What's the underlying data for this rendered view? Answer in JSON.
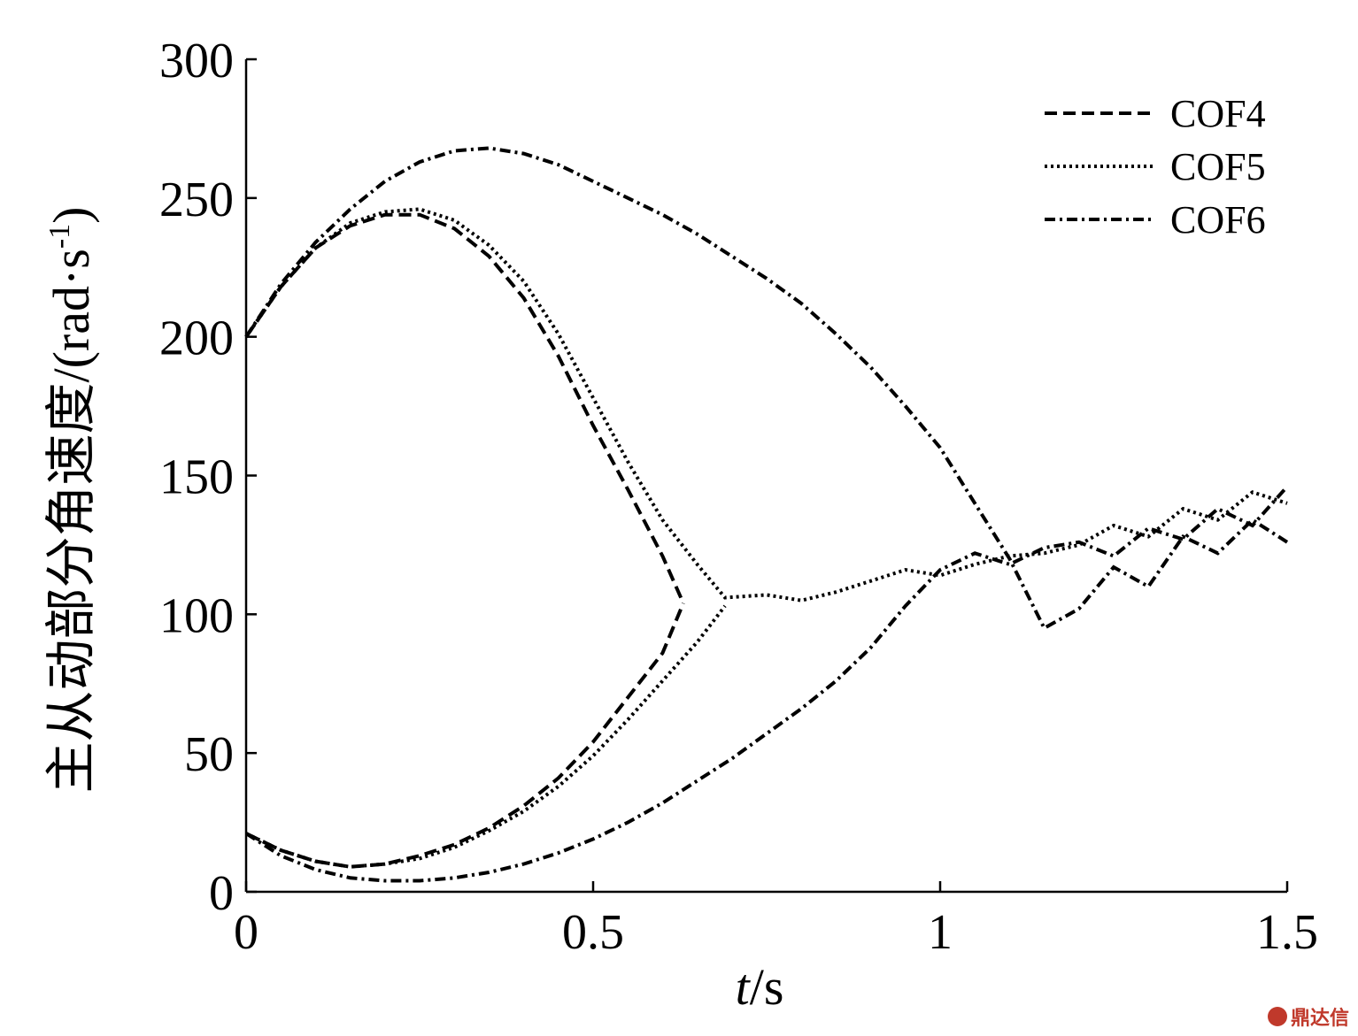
{
  "chart_data": {
    "type": "line",
    "title": "",
    "xlabel_italic": "t",
    "xlabel_rest": "/s",
    "ylabel_main": "主从动部分角速度/(rad·s",
    "ylabel_sup": "-1",
    "ylabel_close": ")",
    "xlim": [
      0,
      1.5
    ],
    "ylim": [
      0,
      300
    ],
    "xticks": [
      "0",
      "0.5",
      "1",
      "1.5"
    ],
    "xtick_values": [
      0,
      0.5,
      1,
      1.5
    ],
    "yticks": [
      "0",
      "50",
      "100",
      "150",
      "200",
      "250",
      "300"
    ],
    "ytick_values": [
      0,
      50,
      100,
      150,
      200,
      250,
      300
    ],
    "grid": false,
    "legend_position": "top-right",
    "series": [
      {
        "name": "COF4",
        "style": "dashed",
        "driving": [
          [
            0,
            200
          ],
          [
            0.05,
            218
          ],
          [
            0.1,
            232
          ],
          [
            0.15,
            240
          ],
          [
            0.2,
            244
          ],
          [
            0.25,
            244
          ],
          [
            0.3,
            239
          ],
          [
            0.35,
            229
          ],
          [
            0.4,
            214
          ],
          [
            0.45,
            193
          ],
          [
            0.5,
            168
          ],
          [
            0.55,
            145
          ],
          [
            0.6,
            121
          ],
          [
            0.63,
            104
          ]
        ],
        "driven": [
          [
            0,
            21
          ],
          [
            0.05,
            15
          ],
          [
            0.1,
            11
          ],
          [
            0.15,
            9
          ],
          [
            0.2,
            10
          ],
          [
            0.25,
            13
          ],
          [
            0.3,
            17
          ],
          [
            0.35,
            23
          ],
          [
            0.4,
            31
          ],
          [
            0.45,
            41
          ],
          [
            0.5,
            54
          ],
          [
            0.55,
            70
          ],
          [
            0.6,
            86
          ],
          [
            0.63,
            104
          ]
        ]
      },
      {
        "name": "COF5",
        "style": "dotted",
        "driving": [
          [
            0,
            200
          ],
          [
            0.05,
            218
          ],
          [
            0.1,
            232
          ],
          [
            0.15,
            241
          ],
          [
            0.2,
            245
          ],
          [
            0.25,
            246
          ],
          [
            0.3,
            242
          ],
          [
            0.35,
            233
          ],
          [
            0.4,
            220
          ],
          [
            0.45,
            201
          ],
          [
            0.5,
            178
          ],
          [
            0.55,
            155
          ],
          [
            0.6,
            134
          ],
          [
            0.65,
            118
          ],
          [
            0.69,
            106
          ],
          [
            0.75,
            107
          ],
          [
            0.8,
            105
          ],
          [
            0.85,
            108
          ],
          [
            0.9,
            112
          ],
          [
            0.95,
            116
          ],
          [
            1.0,
            114
          ],
          [
            1.05,
            118
          ],
          [
            1.1,
            121
          ],
          [
            1.15,
            122
          ],
          [
            1.2,
            125
          ],
          [
            1.25,
            132
          ],
          [
            1.3,
            128
          ],
          [
            1.35,
            138
          ],
          [
            1.4,
            134
          ],
          [
            1.45,
            144
          ],
          [
            1.5,
            140
          ]
        ],
        "driven": [
          [
            0,
            21
          ],
          [
            0.05,
            15
          ],
          [
            0.1,
            11
          ],
          [
            0.15,
            9
          ],
          [
            0.2,
            10
          ],
          [
            0.25,
            12
          ],
          [
            0.3,
            16
          ],
          [
            0.35,
            22
          ],
          [
            0.4,
            29
          ],
          [
            0.45,
            38
          ],
          [
            0.5,
            49
          ],
          [
            0.55,
            62
          ],
          [
            0.6,
            76
          ],
          [
            0.65,
            90
          ],
          [
            0.69,
            103
          ]
        ]
      },
      {
        "name": "COF6",
        "style": "dash-dot",
        "driving": [
          [
            0,
            200
          ],
          [
            0.05,
            219
          ],
          [
            0.1,
            234
          ],
          [
            0.15,
            246
          ],
          [
            0.2,
            256
          ],
          [
            0.25,
            263
          ],
          [
            0.3,
            267
          ],
          [
            0.35,
            268
          ],
          [
            0.4,
            266
          ],
          [
            0.45,
            262
          ],
          [
            0.5,
            256
          ],
          [
            0.55,
            250
          ],
          [
            0.6,
            244
          ],
          [
            0.65,
            237
          ],
          [
            0.7,
            229
          ],
          [
            0.75,
            221
          ],
          [
            0.8,
            212
          ],
          [
            0.85,
            201
          ],
          [
            0.9,
            189
          ],
          [
            0.95,
            175
          ],
          [
            1.0,
            160
          ],
          [
            1.05,
            140
          ],
          [
            1.1,
            120
          ],
          [
            1.15,
            95
          ],
          [
            1.2,
            102
          ],
          [
            1.25,
            117
          ],
          [
            1.3,
            110
          ],
          [
            1.35,
            128
          ],
          [
            1.4,
            122
          ],
          [
            1.45,
            134
          ],
          [
            1.5,
            126
          ]
        ],
        "driven": [
          [
            0,
            21
          ],
          [
            0.05,
            13
          ],
          [
            0.1,
            8
          ],
          [
            0.15,
            5
          ],
          [
            0.2,
            4
          ],
          [
            0.25,
            4
          ],
          [
            0.3,
            5
          ],
          [
            0.35,
            7
          ],
          [
            0.4,
            10
          ],
          [
            0.45,
            14
          ],
          [
            0.5,
            19
          ],
          [
            0.55,
            25
          ],
          [
            0.6,
            32
          ],
          [
            0.65,
            40
          ],
          [
            0.7,
            48
          ],
          [
            0.75,
            57
          ],
          [
            0.8,
            66
          ],
          [
            0.85,
            76
          ],
          [
            0.9,
            88
          ],
          [
            0.95,
            103
          ],
          [
            1.0,
            116
          ],
          [
            1.05,
            122
          ],
          [
            1.1,
            118
          ],
          [
            1.15,
            124
          ],
          [
            1.2,
            126
          ],
          [
            1.25,
            121
          ],
          [
            1.3,
            131
          ],
          [
            1.35,
            127
          ],
          [
            1.4,
            138
          ],
          [
            1.45,
            132
          ],
          [
            1.5,
            146
          ]
        ]
      }
    ]
  },
  "watermark": "鼎达信"
}
